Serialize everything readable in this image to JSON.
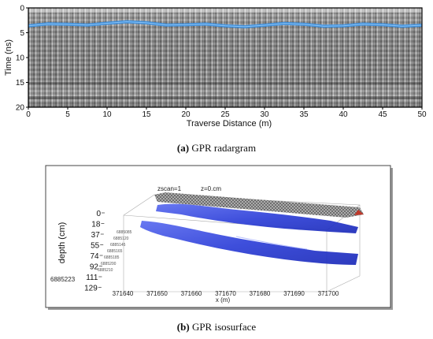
{
  "figure_a": {
    "caption_letter": "(a)",
    "caption_text": "GPR radargram",
    "y_axis_label": "Time (ns)",
    "x_axis_label": "Traverse Distance (m)",
    "y_ticks": [
      "0",
      "5",
      "10",
      "15",
      "20"
    ],
    "x_ticks": [
      "0",
      "5",
      "10",
      "15",
      "20",
      "25",
      "30",
      "35",
      "40",
      "45",
      "50"
    ],
    "y_range": [
      0,
      20
    ],
    "x_range": [
      0,
      50
    ],
    "horizon_color": "#3a8fe0",
    "horizon_time_ns": [
      3.6,
      3.3,
      3.1,
      3.0,
      3.4,
      3.6,
      3.5,
      3.3,
      3.6,
      3.4,
      3.5
    ]
  },
  "figure_b": {
    "caption_letter": "(b)",
    "caption_text": "GPR isosurface",
    "zscan_label": "zscan=1",
    "z_label": "z=0.cm",
    "depth_label": "depth (cm)",
    "depth_ticks": [
      "0",
      "18",
      "37",
      "55",
      "74",
      "92",
      "111",
      "129"
    ],
    "x_label": "x (m)",
    "x_ticks": [
      "371640",
      "371650",
      "371660",
      "371670",
      "371680",
      "371690",
      "371700"
    ],
    "y_tick_partial": "6885223",
    "isosurface_color": "#2d3fd8"
  }
}
